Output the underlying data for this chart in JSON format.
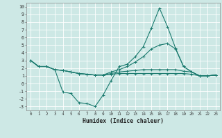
{
  "xlabel": "Humidex (Indice chaleur)",
  "background_color": "#cde8e5",
  "grid_color": "#ffffff",
  "line_color": "#1a7a6e",
  "xlim": [
    -0.5,
    23.5
  ],
  "ylim": [
    -3.5,
    10.5
  ],
  "x_ticks": [
    0,
    1,
    2,
    3,
    4,
    5,
    6,
    7,
    8,
    9,
    10,
    11,
    12,
    13,
    14,
    15,
    16,
    17,
    18,
    19,
    20,
    21,
    22,
    23
  ],
  "y_ticks": [
    -3,
    -2,
    -1,
    0,
    1,
    2,
    3,
    4,
    5,
    6,
    7,
    8,
    9,
    10
  ],
  "series1_y": [
    3.0,
    2.2,
    2.2,
    1.8,
    -1.1,
    -1.3,
    -2.5,
    -2.6,
    -3.0,
    -1.5,
    0.4,
    2.2,
    2.5,
    3.5,
    4.8,
    7.2,
    9.8,
    7.4,
    4.6,
    2.2,
    1.5,
    1.0,
    1.0,
    1.1
  ],
  "series2_y": [
    3.0,
    2.2,
    2.2,
    1.8,
    1.7,
    1.5,
    1.3,
    1.2,
    1.1,
    1.1,
    1.5,
    1.8,
    2.2,
    2.8,
    3.5,
    4.5,
    5.0,
    5.2,
    4.5,
    2.2,
    1.5,
    1.0,
    1.0,
    1.1
  ],
  "series3_y": [
    3.0,
    2.2,
    2.2,
    1.8,
    1.7,
    1.5,
    1.3,
    1.2,
    1.1,
    1.1,
    1.3,
    1.5,
    1.6,
    1.7,
    1.8,
    1.8,
    1.8,
    1.8,
    1.8,
    1.6,
    1.5,
    1.0,
    1.0,
    1.1
  ],
  "series4_y": [
    3.0,
    2.2,
    2.2,
    1.8,
    1.7,
    1.5,
    1.3,
    1.2,
    1.1,
    1.1,
    1.2,
    1.3,
    1.3,
    1.3,
    1.3,
    1.3,
    1.3,
    1.3,
    1.3,
    1.3,
    1.2,
    1.0,
    1.0,
    1.1
  ]
}
